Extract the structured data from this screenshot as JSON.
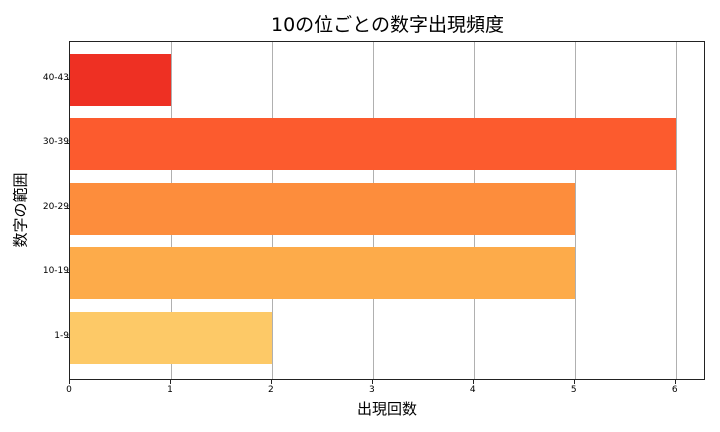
{
  "chart_data": {
    "type": "bar",
    "orientation": "horizontal",
    "title": "10の位ごとの数字出現頻度",
    "xlabel": "出現回数",
    "ylabel": "数字の範囲",
    "categories": [
      "1-9",
      "10-19",
      "20-29",
      "30-39",
      "40-43"
    ],
    "values": [
      2,
      5,
      5,
      6,
      1
    ],
    "colors": [
      "#fdc967",
      "#fdab4a",
      "#fd8d3c",
      "#fc5b2e",
      "#ee3023"
    ],
    "xlim": [
      0,
      6.3
    ],
    "xticks": [
      "0",
      "1",
      "2",
      "3",
      "4",
      "5",
      "6"
    ],
    "grid": "x",
    "legend": null
  }
}
